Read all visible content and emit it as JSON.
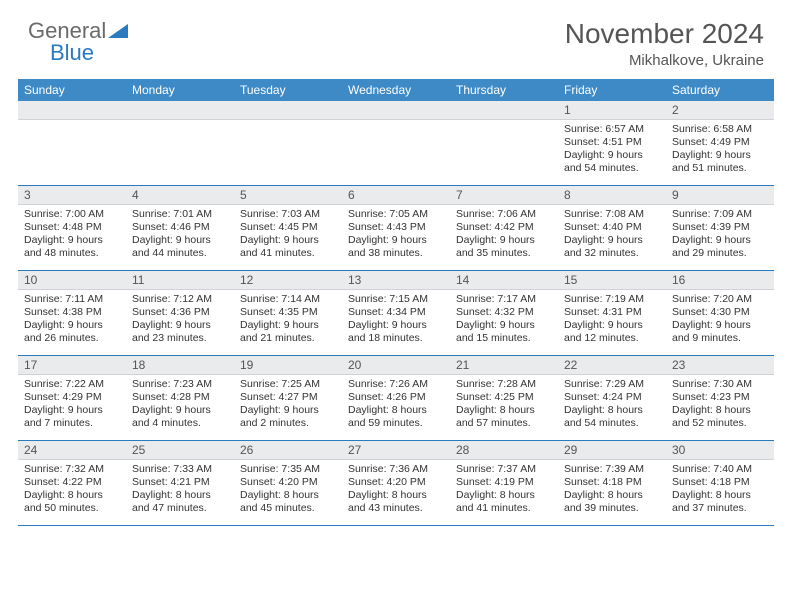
{
  "brand": {
    "general": "General",
    "blue": "Blue"
  },
  "title": {
    "month": "November 2024",
    "location": "Mikhalkove, Ukraine"
  },
  "colors": {
    "header_bar": "#3d8ac7",
    "daynum_bg": "#e9ebed",
    "week_border": "#2a7abf",
    "text": "#333333",
    "title_text": "#555555"
  },
  "weekdays": [
    "Sunday",
    "Monday",
    "Tuesday",
    "Wednesday",
    "Thursday",
    "Friday",
    "Saturday"
  ],
  "weeks": [
    [
      {
        "empty": true
      },
      {
        "empty": true
      },
      {
        "empty": true
      },
      {
        "empty": true
      },
      {
        "empty": true
      },
      {
        "day": "1",
        "sunrise": "Sunrise: 6:57 AM",
        "sunset": "Sunset: 4:51 PM",
        "daylight": "Daylight: 9 hours and 54 minutes."
      },
      {
        "day": "2",
        "sunrise": "Sunrise: 6:58 AM",
        "sunset": "Sunset: 4:49 PM",
        "daylight": "Daylight: 9 hours and 51 minutes."
      }
    ],
    [
      {
        "day": "3",
        "sunrise": "Sunrise: 7:00 AM",
        "sunset": "Sunset: 4:48 PM",
        "daylight": "Daylight: 9 hours and 48 minutes."
      },
      {
        "day": "4",
        "sunrise": "Sunrise: 7:01 AM",
        "sunset": "Sunset: 4:46 PM",
        "daylight": "Daylight: 9 hours and 44 minutes."
      },
      {
        "day": "5",
        "sunrise": "Sunrise: 7:03 AM",
        "sunset": "Sunset: 4:45 PM",
        "daylight": "Daylight: 9 hours and 41 minutes."
      },
      {
        "day": "6",
        "sunrise": "Sunrise: 7:05 AM",
        "sunset": "Sunset: 4:43 PM",
        "daylight": "Daylight: 9 hours and 38 minutes."
      },
      {
        "day": "7",
        "sunrise": "Sunrise: 7:06 AM",
        "sunset": "Sunset: 4:42 PM",
        "daylight": "Daylight: 9 hours and 35 minutes."
      },
      {
        "day": "8",
        "sunrise": "Sunrise: 7:08 AM",
        "sunset": "Sunset: 4:40 PM",
        "daylight": "Daylight: 9 hours and 32 minutes."
      },
      {
        "day": "9",
        "sunrise": "Sunrise: 7:09 AM",
        "sunset": "Sunset: 4:39 PM",
        "daylight": "Daylight: 9 hours and 29 minutes."
      }
    ],
    [
      {
        "day": "10",
        "sunrise": "Sunrise: 7:11 AM",
        "sunset": "Sunset: 4:38 PM",
        "daylight": "Daylight: 9 hours and 26 minutes."
      },
      {
        "day": "11",
        "sunrise": "Sunrise: 7:12 AM",
        "sunset": "Sunset: 4:36 PM",
        "daylight": "Daylight: 9 hours and 23 minutes."
      },
      {
        "day": "12",
        "sunrise": "Sunrise: 7:14 AM",
        "sunset": "Sunset: 4:35 PM",
        "daylight": "Daylight: 9 hours and 21 minutes."
      },
      {
        "day": "13",
        "sunrise": "Sunrise: 7:15 AM",
        "sunset": "Sunset: 4:34 PM",
        "daylight": "Daylight: 9 hours and 18 minutes."
      },
      {
        "day": "14",
        "sunrise": "Sunrise: 7:17 AM",
        "sunset": "Sunset: 4:32 PM",
        "daylight": "Daylight: 9 hours and 15 minutes."
      },
      {
        "day": "15",
        "sunrise": "Sunrise: 7:19 AM",
        "sunset": "Sunset: 4:31 PM",
        "daylight": "Daylight: 9 hours and 12 minutes."
      },
      {
        "day": "16",
        "sunrise": "Sunrise: 7:20 AM",
        "sunset": "Sunset: 4:30 PM",
        "daylight": "Daylight: 9 hours and 9 minutes."
      }
    ],
    [
      {
        "day": "17",
        "sunrise": "Sunrise: 7:22 AM",
        "sunset": "Sunset: 4:29 PM",
        "daylight": "Daylight: 9 hours and 7 minutes."
      },
      {
        "day": "18",
        "sunrise": "Sunrise: 7:23 AM",
        "sunset": "Sunset: 4:28 PM",
        "daylight": "Daylight: 9 hours and 4 minutes."
      },
      {
        "day": "19",
        "sunrise": "Sunrise: 7:25 AM",
        "sunset": "Sunset: 4:27 PM",
        "daylight": "Daylight: 9 hours and 2 minutes."
      },
      {
        "day": "20",
        "sunrise": "Sunrise: 7:26 AM",
        "sunset": "Sunset: 4:26 PM",
        "daylight": "Daylight: 8 hours and 59 minutes."
      },
      {
        "day": "21",
        "sunrise": "Sunrise: 7:28 AM",
        "sunset": "Sunset: 4:25 PM",
        "daylight": "Daylight: 8 hours and 57 minutes."
      },
      {
        "day": "22",
        "sunrise": "Sunrise: 7:29 AM",
        "sunset": "Sunset: 4:24 PM",
        "daylight": "Daylight: 8 hours and 54 minutes."
      },
      {
        "day": "23",
        "sunrise": "Sunrise: 7:30 AM",
        "sunset": "Sunset: 4:23 PM",
        "daylight": "Daylight: 8 hours and 52 minutes."
      }
    ],
    [
      {
        "day": "24",
        "sunrise": "Sunrise: 7:32 AM",
        "sunset": "Sunset: 4:22 PM",
        "daylight": "Daylight: 8 hours and 50 minutes."
      },
      {
        "day": "25",
        "sunrise": "Sunrise: 7:33 AM",
        "sunset": "Sunset: 4:21 PM",
        "daylight": "Daylight: 8 hours and 47 minutes."
      },
      {
        "day": "26",
        "sunrise": "Sunrise: 7:35 AM",
        "sunset": "Sunset: 4:20 PM",
        "daylight": "Daylight: 8 hours and 45 minutes."
      },
      {
        "day": "27",
        "sunrise": "Sunrise: 7:36 AM",
        "sunset": "Sunset: 4:20 PM",
        "daylight": "Daylight: 8 hours and 43 minutes."
      },
      {
        "day": "28",
        "sunrise": "Sunrise: 7:37 AM",
        "sunset": "Sunset: 4:19 PM",
        "daylight": "Daylight: 8 hours and 41 minutes."
      },
      {
        "day": "29",
        "sunrise": "Sunrise: 7:39 AM",
        "sunset": "Sunset: 4:18 PM",
        "daylight": "Daylight: 8 hours and 39 minutes."
      },
      {
        "day": "30",
        "sunrise": "Sunrise: 7:40 AM",
        "sunset": "Sunset: 4:18 PM",
        "daylight": "Daylight: 8 hours and 37 minutes."
      }
    ]
  ]
}
